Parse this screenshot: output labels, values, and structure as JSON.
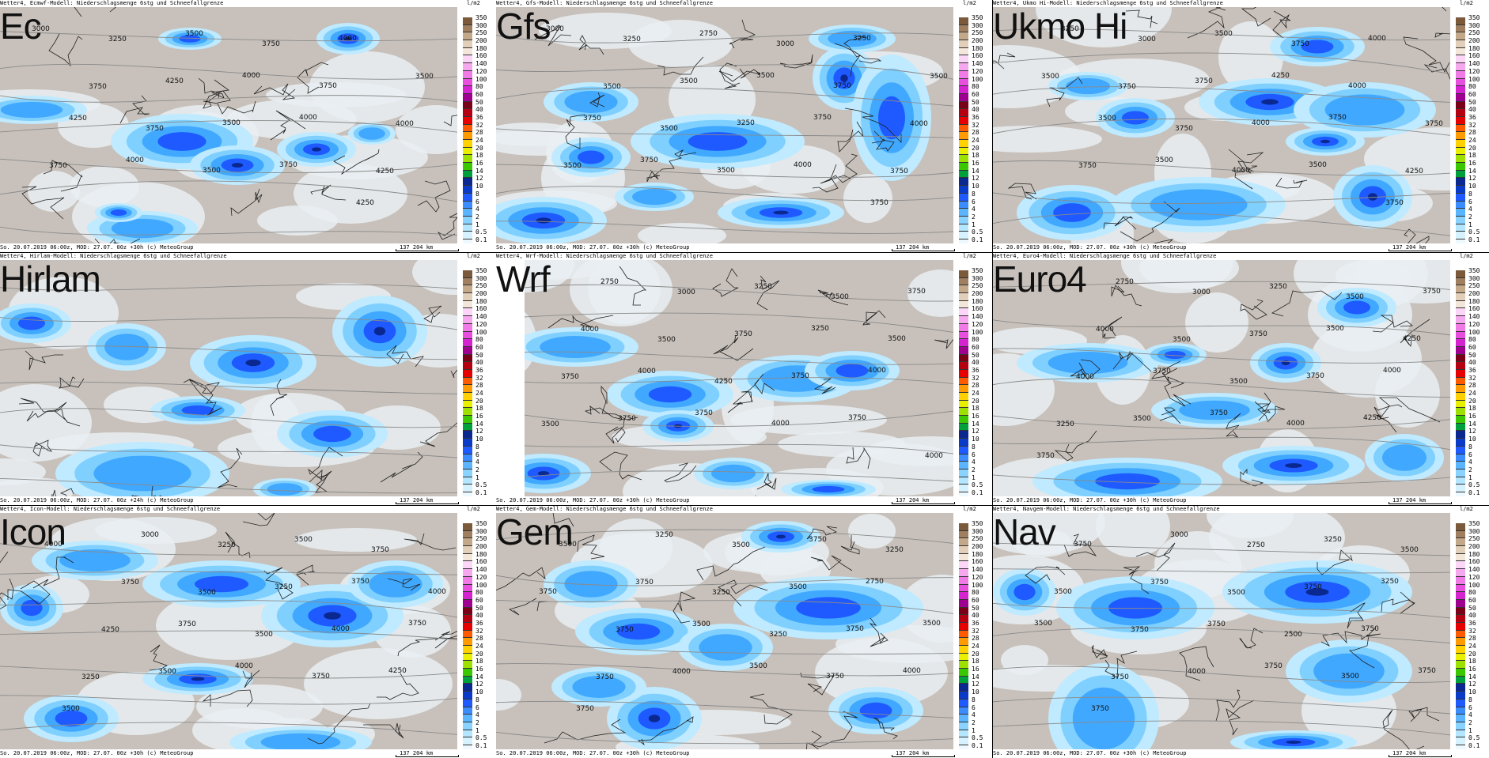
{
  "header_prefix": "Wetter4,",
  "header_suffix": "Niederschlagsmenge 6stg und Schneefallgrenze",
  "footer_text": "So. 20.07.2019 06:00z, MOD: 27.07. 00z +30h (c) MeteoGroup",
  "footer_text_hirlam": "So. 20.07.2019 06:00z, MOD: 27.07. 00z +24h (c) MeteoGroup",
  "units": "l/m2",
  "scale_text": "137   204 km",
  "legend_labels": [
    "350",
    "300",
    "250",
    "200",
    "180",
    "160",
    "140",
    "120",
    "100",
    "80",
    "60",
    "50",
    "40",
    "36",
    "32",
    "28",
    "24",
    "20",
    "18",
    "16",
    "14",
    "12",
    "10",
    "8",
    "6",
    "4",
    "2",
    "1",
    "0.5",
    "0.1"
  ],
  "legend_colors": [
    "#7b5a3c",
    "#a07f60",
    "#c4a88a",
    "#e2cfb9",
    "#f3e7da",
    "#fbd6f6",
    "#f6a8ef",
    "#f07ae6",
    "#e84fde",
    "#d524cf",
    "#a00090",
    "#7a0018",
    "#b40010",
    "#e60000",
    "#ff5a00",
    "#ff9a00",
    "#ffd100",
    "#e8f000",
    "#9ee000",
    "#3cc800",
    "#00a03c",
    "#0a2890",
    "#0a3ac8",
    "#1e5aff",
    "#3a8cff",
    "#5ab4ff",
    "#8ad2ff",
    "#b4e6ff",
    "#d6f2ff",
    "#eef8ff"
  ],
  "panels": [
    {
      "title": "Ec",
      "model": "Ecmwf-Modell:",
      "contours": [
        "3000",
        "3250",
        "3500",
        "3750",
        "4000",
        "3500",
        "3750",
        "4250",
        "4000",
        "3750",
        "4000",
        "4250",
        "3750",
        "3500",
        "4000",
        "4250",
        "3750",
        "4000",
        "3500",
        "3750",
        "4250"
      ]
    },
    {
      "title": "Gfs",
      "model": "Gfs-Modell:",
      "contours": [
        "3000",
        "3250",
        "2750",
        "3000",
        "3250",
        "3500",
        "3500",
        "3500",
        "3500",
        "3750",
        "4000",
        "3750",
        "3500",
        "3250",
        "3750",
        "3750",
        "3500",
        "3750",
        "3500",
        "4000",
        "3750"
      ]
    },
    {
      "title": "Ukmo Hi",
      "model": "Ukmo Hi-Modell:",
      "contours": [
        "3250",
        "3000",
        "3500",
        "3750",
        "4000",
        "3500",
        "3750",
        "3750",
        "4250",
        "4000",
        "3750",
        "3500",
        "3750",
        "4000",
        "3750",
        "4250",
        "3750",
        "3500",
        "4000",
        "3500",
        "3750"
      ]
    },
    {
      "title": "Hirlam",
      "model": "Hirlam-Modell:",
      "contours": []
    },
    {
      "title": "Wrf",
      "model": "Wrf-Modell:",
      "contours": [
        "2750",
        "3000",
        "3250",
        "3500",
        "3750",
        "4000",
        "3500",
        "3750",
        "3250",
        "3500",
        "3750",
        "4000",
        "4250",
        "3750",
        "4000",
        "3500",
        "3750",
        "3750",
        "4000",
        "3750",
        "4000"
      ]
    },
    {
      "title": "Euro4",
      "model": "Euro4-Modell:",
      "contours": [
        "2750",
        "3000",
        "3250",
        "3500",
        "3750",
        "4000",
        "3500",
        "3750",
        "3500",
        "4250",
        "4000",
        "3750",
        "3500",
        "3750",
        "4000",
        "3250",
        "3500",
        "3750",
        "4000",
        "4250",
        "3750"
      ]
    },
    {
      "title": "Icon",
      "model": "Icon-Modell:",
      "contours": [
        "3000",
        "3250",
        "3500",
        "3750",
        "4000",
        "3750",
        "3500",
        "3250",
        "3750",
        "4000",
        "4250",
        "3750",
        "3500",
        "4000",
        "3750",
        "3250",
        "3500",
        "4000",
        "3750",
        "4250",
        "3500"
      ]
    },
    {
      "title": "Gem",
      "model": "Gem-Modell:",
      "contours": [
        "3250",
        "3500",
        "3750",
        "3250",
        "3500",
        "3750",
        "3250",
        "3500",
        "2750",
        "3750",
        "3750",
        "3500",
        "3250",
        "3750",
        "3500",
        "3750",
        "4000",
        "3500",
        "3750",
        "4000",
        "3750"
      ]
    },
    {
      "title": "Nav",
      "model": "Navgem-Modell:",
      "contours": [
        "3000",
        "2750",
        "3250",
        "3500",
        "3750",
        "3750",
        "3500",
        "3750",
        "3250",
        "3500",
        "3750",
        "3750",
        "2500",
        "3750",
        "3500",
        "3750",
        "4000",
        "3750",
        "3500",
        "3750",
        "3750"
      ]
    }
  ]
}
